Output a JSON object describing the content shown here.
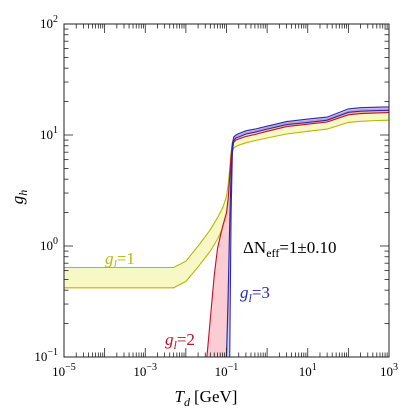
{
  "chart_data": {
    "type": "area",
    "xlabel_var": "T",
    "xlabel_sub": "d",
    "xlabel_unit": "[GeV]",
    "ylabel_var": "g",
    "ylabel_sub": "h",
    "xscale": "log",
    "yscale": "log",
    "xlim": [
      1e-05,
      1000
    ],
    "ylim": [
      0.1,
      100
    ],
    "x_ticks": [
      {
        "value": 1e-05,
        "base": "10",
        "exp": "−5"
      },
      {
        "value": 0.001,
        "base": "10",
        "exp": "−3"
      },
      {
        "value": 0.1,
        "base": "10",
        "exp": "−1"
      },
      {
        "value": 10,
        "base": "10",
        "exp": "1"
      },
      {
        "value": 1000,
        "base": "10",
        "exp": "3"
      }
    ],
    "y_ticks": [
      {
        "value": 0.1,
        "base": "10",
        "exp": "−1"
      },
      {
        "value": 1,
        "base": "10",
        "exp": "0"
      },
      {
        "value": 10,
        "base": "10",
        "exp": "1"
      },
      {
        "value": 100,
        "base": "10",
        "exp": "2"
      }
    ],
    "grid": false,
    "legend": "none",
    "annotation": {
      "prefix": "ΔN",
      "sub": "eff",
      "suffix": "=1±0.10"
    },
    "series": [
      {
        "label_var": "g",
        "label_sub": "l",
        "label_value": "=1",
        "color": "#b8b800",
        "fill": "#f6f6b4",
        "x": [
          1e-05,
          0.0001,
          0.001,
          0.005,
          0.01,
          0.02,
          0.04,
          0.06,
          0.08,
          0.1,
          0.11,
          0.12,
          0.13,
          0.14,
          0.15,
          0.17,
          0.2,
          0.3,
          0.5,
          1,
          3,
          10,
          30,
          100,
          200,
          500,
          1000
        ],
        "upper": [
          0.64,
          0.64,
          0.64,
          0.64,
          0.73,
          1.0,
          1.4,
          1.8,
          2.2,
          2.8,
          3.6,
          5.0,
          7.0,
          8.6,
          9.2,
          9.5,
          9.7,
          10.2,
          10.6,
          11.2,
          12.3,
          12.9,
          13.4,
          15.6,
          16.0,
          16.2,
          16.3
        ],
        "lower": [
          0.42,
          0.42,
          0.42,
          0.42,
          0.48,
          0.65,
          0.9,
          1.15,
          1.45,
          1.8,
          2.4,
          3.6,
          5.6,
          7.0,
          7.6,
          7.9,
          8.1,
          8.5,
          8.9,
          9.4,
          10.2,
          10.8,
          11.3,
          13.0,
          13.3,
          13.5,
          13.6
        ]
      },
      {
        "label_var": "g",
        "label_sub": "l",
        "label_value": "=2",
        "color": "#c0102a",
        "fill": "#f7bcc4",
        "x": [
          0.033,
          0.04,
          0.05,
          0.06,
          0.08,
          0.1,
          0.11,
          0.12,
          0.13,
          0.14,
          0.15,
          0.17,
          0.2,
          0.3,
          0.5,
          1,
          3,
          10,
          30,
          100,
          200,
          500,
          1000
        ],
        "upper": [
          0.1,
          0.22,
          0.55,
          0.95,
          1.5,
          2.0,
          2.7,
          4.2,
          6.5,
          8.4,
          9.3,
          9.7,
          9.9,
          10.5,
          10.9,
          11.6,
          12.8,
          13.4,
          14.0,
          16.4,
          16.9,
          17.1,
          17.2
        ],
        "lower": [
          0.1,
          0.1,
          0.1,
          0.1,
          0.1,
          0.1,
          0.25,
          1.2,
          4.0,
          7.4,
          8.6,
          9.0,
          9.2,
          9.7,
          10.1,
          10.8,
          11.9,
          12.5,
          13.1,
          15.2,
          15.6,
          15.8,
          15.9
        ]
      },
      {
        "label_var": "g",
        "label_sub": "l",
        "label_value": "=3",
        "color": "#2a2ab0",
        "fill": "#c4c4f2",
        "x": [
          0.1,
          0.11,
          0.12,
          0.13,
          0.14,
          0.15,
          0.17,
          0.2,
          0.3,
          0.5,
          1,
          3,
          10,
          30,
          100,
          200,
          500,
          1000
        ],
        "upper": [
          0.1,
          0.38,
          1.6,
          4.6,
          8.2,
          9.6,
          10.0,
          10.3,
          10.9,
          11.3,
          12.0,
          13.2,
          13.9,
          14.5,
          17.2,
          17.6,
          17.8,
          17.9
        ],
        "lower": [
          0.1,
          0.1,
          0.1,
          2.0,
          7.0,
          8.9,
          9.4,
          9.6,
          10.2,
          10.6,
          11.3,
          12.4,
          13.0,
          13.6,
          16.0,
          16.4,
          16.6,
          16.7
        ]
      }
    ]
  }
}
